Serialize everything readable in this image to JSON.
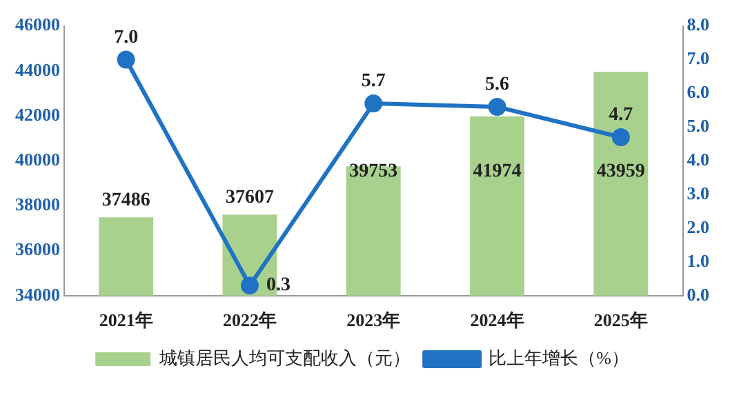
{
  "chart_data": {
    "type": "bar",
    "categories": [
      "2021年",
      "2022年",
      "2023年",
      "2024年",
      "2025年"
    ],
    "series": [
      {
        "name": "城镇居民人均可支配收入（元）",
        "color": "#a9d18e",
        "values": [
          37486,
          37607,
          39753,
          41974,
          43959
        ]
      },
      {
        "name": "比上年增长（%）",
        "type": "line",
        "axis": "y2",
        "color": "#1f72c4",
        "values": [
          7.0,
          0.3,
          5.7,
          5.6,
          4.7
        ],
        "value_labels": [
          "7.0",
          "0.3",
          "5.7",
          "5.6",
          "4.7"
        ]
      }
    ],
    "ylim": [
      34000,
      46000
    ],
    "yticks": [
      34000,
      36000,
      38000,
      40000,
      42000,
      44000,
      46000
    ],
    "y2lim": [
      0,
      8
    ],
    "y2ticks": [
      {
        "value": 0,
        "label": "0.0"
      },
      {
        "value": 1,
        "label": "1.0"
      },
      {
        "value": 2,
        "label": "2.0"
      },
      {
        "value": 3,
        "label": "3.0"
      },
      {
        "value": 4,
        "label": "4.0"
      },
      {
        "value": 5,
        "label": "5.0"
      },
      {
        "value": 6,
        "label": "6.0"
      },
      {
        "value": 7,
        "label": "7.0"
      },
      {
        "value": 8,
        "label": "8.0"
      }
    ],
    "data_labels": true,
    "legend": "bottom",
    "grid": false,
    "marker": "circle",
    "line_style": "solid"
  }
}
